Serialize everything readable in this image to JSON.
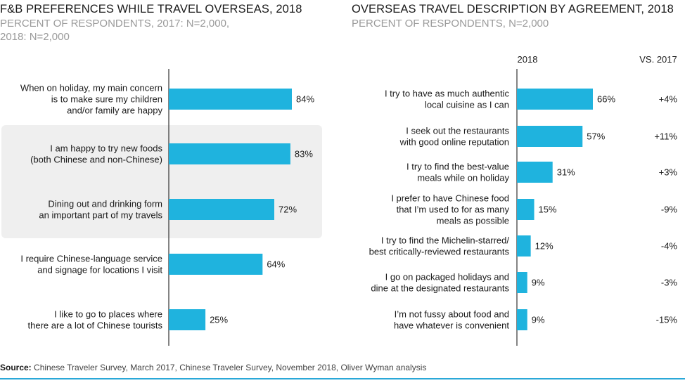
{
  "left": {
    "title": "F&B PREFERENCES WHILE TRAVEL OVERSEAS, 2018",
    "subtitle_line1": "PERCENT OF RESPONDENTS, 2017: N=2,000,",
    "subtitle_line2": "2018: N=2,000"
  },
  "right": {
    "title": "OVERSEAS TRAVEL DESCRIPTION BY AGREEMENT, 2018",
    "subtitle": "PERCENT OF RESPONDENTS, N=2,000",
    "col_2018": "2018",
    "col_vs": "VS. 2017"
  },
  "source": {
    "label": "Source:",
    "text": " Chinese Traveler Survey, March 2017, Chinese Traveler Survey, November 2018, Oliver Wyman analysis"
  },
  "colors": {
    "bar": "#1fb3de",
    "highlight": "#efefef",
    "axis": "#333333",
    "rule": "#2aa8d8"
  },
  "chart_data": [
    {
      "type": "bar",
      "orientation": "horizontal",
      "title": "F&B PREFERENCES WHILE TRAVEL OVERSEAS, 2018",
      "categories": [
        [
          "When on holiday, my main concern",
          "is to make sure my children",
          "and/or family are happy"
        ],
        [
          "I am happy to try new foods",
          "(both Chinese and non-Chinese)"
        ],
        [
          "Dining out and drinking form",
          "an important part of my travels"
        ],
        [
          "I require Chinese-language service",
          "and signage for locations I visit"
        ],
        [
          "I like to go to places where",
          "there are a lot of Chinese tourists"
        ]
      ],
      "values": [
        84,
        83,
        72,
        64,
        25
      ],
      "value_labels": [
        "84%",
        "83%",
        "72%",
        "64%",
        "25%"
      ],
      "highlighted": [
        1,
        2
      ],
      "xlim": [
        0,
        100
      ]
    },
    {
      "type": "bar",
      "orientation": "horizontal",
      "title": "OVERSEAS TRAVEL DESCRIPTION BY AGREEMENT, 2018",
      "categories": [
        [
          "I try to have as much authentic",
          "local cuisine as I can"
        ],
        [
          "I seek out the restaurants",
          "with good online reputation"
        ],
        [
          "I try to find the best-value",
          "meals while on holiday"
        ],
        [
          "I prefer to have Chinese food",
          "that I’m used to for as many",
          "meals as possible"
        ],
        [
          "I try to find the Michelin-starred/",
          "best critically-reviewed restaurants"
        ],
        [
          "I go on packaged holidays and",
          "dine at the designated restaurants"
        ],
        [
          "I’m not fussy about food and",
          "have whatever is convenient"
        ]
      ],
      "values": [
        66,
        57,
        31,
        15,
        12,
        9,
        9
      ],
      "value_labels": [
        "66%",
        "57%",
        "31%",
        "15%",
        "12%",
        "9%",
        "9%"
      ],
      "change_vs_2017": [
        "+4%",
        "+11%",
        "+3%",
        "-9%",
        "-4%",
        "-3%",
        "-15%"
      ],
      "xlim": [
        0,
        100
      ]
    }
  ]
}
